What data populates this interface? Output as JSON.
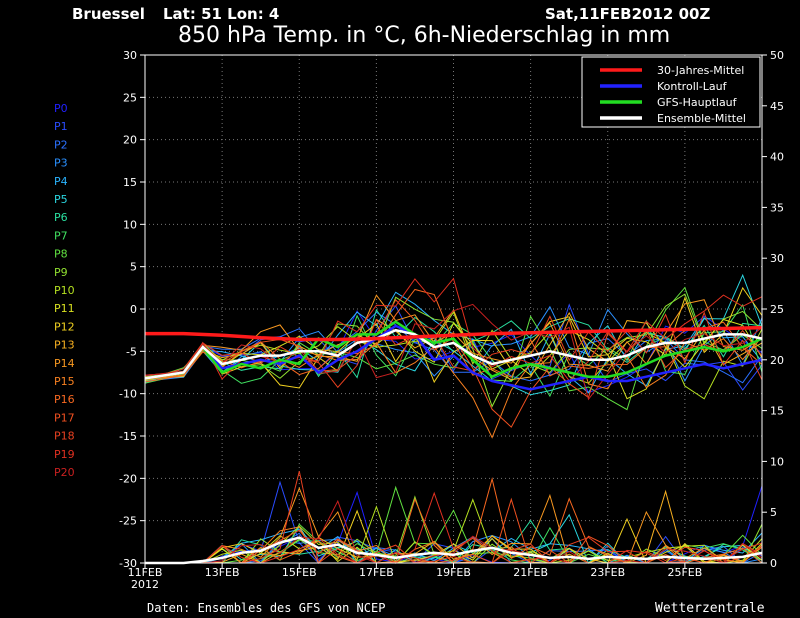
{
  "header": {
    "station": "Bruessel",
    "coords": "Lat: 51 Lon: 4",
    "run": "Sat,11FEB2012 00Z",
    "title": "850 hPa Temp. in °C, 6h-Niederschlag in mm"
  },
  "footer": {
    "source": "Daten: Ensembles des GFS von NCEP",
    "brand": "Wetterzentrale"
  },
  "chart_data": {
    "type": "line",
    "title": "850 hPa Temp. in °C, 6h-Niederschlag in mm",
    "x_ticks": [
      "11FEB",
      "13FEB",
      "15FEB",
      "17FEB",
      "19FEB",
      "21FEB",
      "23FEB",
      "25FEB"
    ],
    "x_tick_year": "2012",
    "x_day_range": [
      11,
      27
    ],
    "y_left": {
      "range": [
        -30,
        30
      ],
      "ticks": [
        30,
        25,
        20,
        15,
        10,
        5,
        0,
        -5,
        -10,
        -15,
        -20,
        -25,
        -30
      ]
    },
    "y_right": {
      "range": [
        0,
        50
      ],
      "ticks": [
        50,
        45,
        40,
        35,
        30,
        25,
        20,
        15,
        10,
        5,
        0
      ]
    },
    "grid": true,
    "legend_position": "top-right",
    "legend": [
      {
        "name": "30-Jahres-Mittel",
        "color": "#ff1a1a"
      },
      {
        "name": "Kontroll-Lauf",
        "color": "#2222ff"
      },
      {
        "name": "GFS-Hauptlauf",
        "color": "#22dd22"
      },
      {
        "name": "Ensemble-Mittel",
        "color": "#ffffff"
      }
    ],
    "members": [
      {
        "name": "P0",
        "color": "#2020ff"
      },
      {
        "name": "P1",
        "color": "#2a4cff"
      },
      {
        "name": "P2",
        "color": "#2a70ff"
      },
      {
        "name": "P3",
        "color": "#2a90ff"
      },
      {
        "name": "P4",
        "color": "#2ab4ff"
      },
      {
        "name": "P5",
        "color": "#2ad6e0"
      },
      {
        "name": "P6",
        "color": "#2ae0a0"
      },
      {
        "name": "P7",
        "color": "#40e060"
      },
      {
        "name": "P8",
        "color": "#60e040"
      },
      {
        "name": "P9",
        "color": "#90e030"
      },
      {
        "name": "P10",
        "color": "#b4e020"
      },
      {
        "name": "P11",
        "color": "#d8e020"
      },
      {
        "name": "P12",
        "color": "#f0d020"
      },
      {
        "name": "P13",
        "color": "#f8b020"
      },
      {
        "name": "P14",
        "color": "#f89820"
      },
      {
        "name": "P15",
        "color": "#f88020"
      },
      {
        "name": "P16",
        "color": "#f86820"
      },
      {
        "name": "P17",
        "color": "#f05020"
      },
      {
        "name": "P18",
        "color": "#e84020"
      },
      {
        "name": "P19",
        "color": "#e03020"
      },
      {
        "name": "P20",
        "color": "#c82020"
      }
    ],
    "series": [
      {
        "name": "30-Jahres-Mittel",
        "role": "climatology",
        "color": "#ff1a1a",
        "x": [
          11,
          12,
          13,
          14,
          15,
          16,
          17,
          18,
          19,
          20,
          21,
          22,
          23,
          24,
          25,
          26,
          27
        ],
        "y": [
          -2.9,
          -2.9,
          -3.1,
          -3.4,
          -3.6,
          -3.6,
          -3.5,
          -3.3,
          -3.1,
          -2.9,
          -2.8,
          -2.7,
          -2.6,
          -2.5,
          -2.4,
          -2.3,
          -2.2
        ]
      },
      {
        "name": "Ensemble-Mittel",
        "role": "ensemble_mean",
        "color": "#ffffff",
        "x": [
          11,
          12,
          12.5,
          13,
          13.5,
          14,
          14.5,
          15,
          15.5,
          16,
          16.5,
          17,
          17.5,
          18,
          18.5,
          19,
          19.5,
          20,
          20.5,
          21,
          21.5,
          22,
          22.5,
          23,
          23.5,
          24,
          24.5,
          25,
          25.5,
          26,
          26.5,
          27
        ],
        "y": [
          -8.2,
          -7.5,
          -4.5,
          -6.5,
          -6,
          -5.5,
          -5.5,
          -5,
          -5,
          -5.5,
          -4,
          -3.5,
          -2.5,
          -3,
          -4.5,
          -4,
          -5.5,
          -6.5,
          -6,
          -5.5,
          -5,
          -5.5,
          -6,
          -6,
          -5.5,
          -4.5,
          -4,
          -4,
          -3.5,
          -3,
          -3,
          -3.5
        ]
      },
      {
        "name": "Kontroll-Lauf",
        "role": "control",
        "color": "#2222ff",
        "x": [
          11,
          12,
          12.5,
          13,
          13.5,
          14,
          14.5,
          15,
          15.5,
          16,
          16.5,
          17,
          17.5,
          18,
          18.5,
          19,
          19.5,
          20,
          20.5,
          21,
          21.5,
          22,
          22.5,
          23,
          23.5,
          24,
          24.5,
          25,
          25.5,
          26,
          26.5,
          27
        ],
        "y": [
          -8.2,
          -7.5,
          -4.5,
          -7,
          -6.5,
          -6,
          -6.5,
          -5.5,
          -7.5,
          -6,
          -5,
          -3.5,
          -2,
          -3,
          -6,
          -5.5,
          -7.5,
          -8.5,
          -9,
          -9.5,
          -9,
          -8.5,
          -8,
          -8.5,
          -8.5,
          -8,
          -7.5,
          -7,
          -6.5,
          -7,
          -6.5,
          -6
        ]
      },
      {
        "name": "GFS-Hauptlauf",
        "role": "operational",
        "color": "#22dd22",
        "x": [
          11,
          12,
          12.5,
          13,
          13.5,
          14,
          14.5,
          15,
          15.5,
          16,
          16.5,
          17,
          17.5,
          18,
          18.5,
          19,
          19.5,
          20,
          20.5,
          21,
          21.5,
          22,
          22.5,
          23,
          23.5,
          24,
          24.5,
          25,
          25.5,
          26,
          26.5,
          27
        ],
        "y": [
          -8.2,
          -7.5,
          -4.5,
          -7.5,
          -6.5,
          -7,
          -6,
          -6.5,
          -3.5,
          -4.5,
          -3,
          -3,
          -1.5,
          -3,
          -4,
          -3.5,
          -6,
          -8,
          -7,
          -6.5,
          -7,
          -7.5,
          -8,
          -8,
          -7.5,
          -6.5,
          -5.5,
          -5,
          -4.5,
          -5,
          -4.5,
          -3.5
        ]
      }
    ],
    "precipitation_mean": {
      "color": "#ffffff",
      "x": [
        11,
        12,
        12.5,
        13,
        13.5,
        14,
        14.5,
        15,
        15.5,
        16,
        16.5,
        17,
        17.5,
        18,
        18.5,
        19,
        19.5,
        20,
        20.5,
        21,
        21.5,
        22,
        22.5,
        23,
        23.5,
        24,
        24.5,
        25,
        25.5,
        26,
        26.5,
        27
      ],
      "y": [
        0,
        0,
        0.2,
        0.5,
        1,
        1.2,
        2,
        2.5,
        1.5,
        1.8,
        1,
        0.8,
        0.5,
        0.8,
        1,
        0.8,
        1.2,
        1.5,
        1,
        0.8,
        0.5,
        0.6,
        0.4,
        0.6,
        0.5,
        0.4,
        0.6,
        0.5,
        0.4,
        0.5,
        0.6,
        1
      ]
    }
  }
}
